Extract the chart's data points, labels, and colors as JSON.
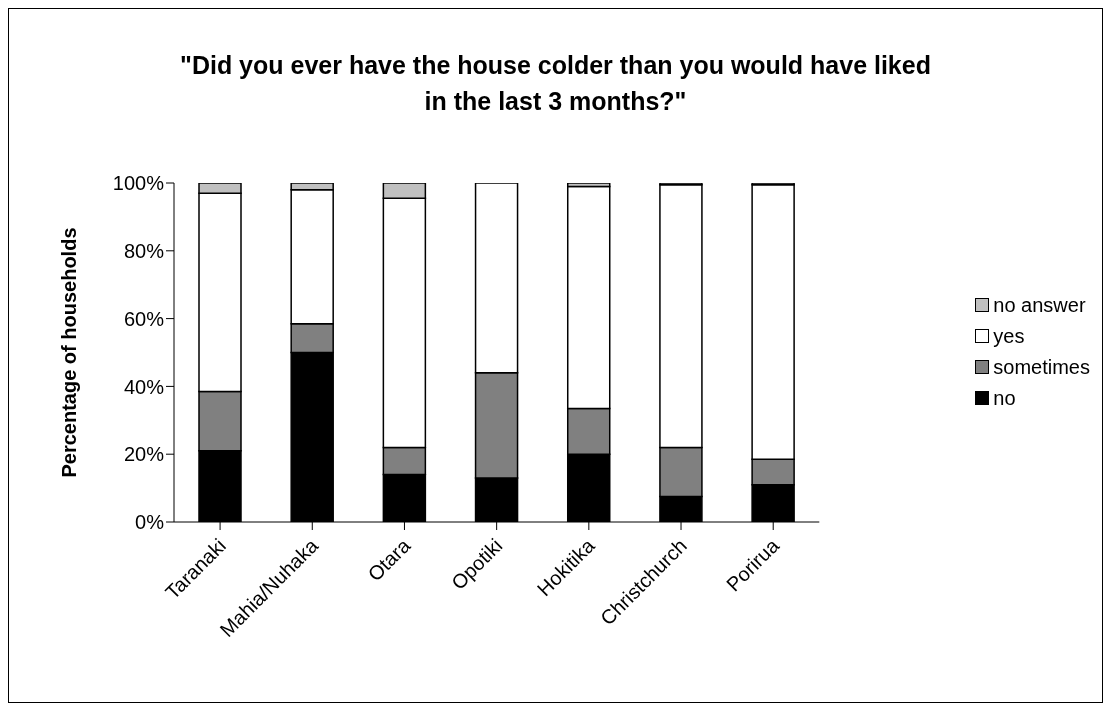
{
  "chart_data": {
    "type": "bar",
    "title": "\"Did you ever have the house colder than you would have liked in the last 3 months?\"",
    "ylabel": "Percentage of households",
    "categories": [
      "Taranaki",
      "Mahia/Nuhaka",
      "Otara",
      "Opotiki",
      "Hokitika",
      "Christchurch",
      "Porirua"
    ],
    "stacked": true,
    "series": [
      {
        "name": "no",
        "color": "#000000",
        "values": [
          21,
          50,
          14,
          13,
          20,
          7.5,
          11
        ]
      },
      {
        "name": "sometimes",
        "color": "#808080",
        "values": [
          17.5,
          8.5,
          8,
          31,
          13.5,
          14.5,
          7.5
        ]
      },
      {
        "name": "yes",
        "color": "#ffffff",
        "values": [
          58.5,
          39.5,
          73.5,
          56,
          65.5,
          77.5,
          81
        ]
      },
      {
        "name": "no answer",
        "color": "#c0c0c0",
        "values": [
          3,
          2,
          4.5,
          0,
          1,
          0.5,
          0.5
        ]
      }
    ],
    "ylim": [
      0,
      100
    ],
    "yticks": [
      {
        "value": 0,
        "label": "0%"
      },
      {
        "value": 20,
        "label": "20%"
      },
      {
        "value": 40,
        "label": "40%"
      },
      {
        "value": 60,
        "label": "60%"
      },
      {
        "value": 80,
        "label": "80%"
      },
      {
        "value": 100,
        "label": "100%"
      }
    ],
    "grid": false,
    "legend": "right"
  }
}
